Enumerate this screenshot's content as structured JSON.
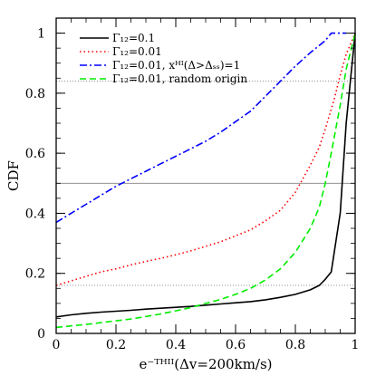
{
  "chart_data": {
    "type": "line",
    "xlabel": "e⁻ᵀᴴᴵᴵ(Δv=200km/s)",
    "ylabel": "CDF",
    "xlim": [
      0,
      1
    ],
    "ylim": [
      0,
      1.05
    ],
    "x_ticks": [
      "0",
      "0.2",
      "0.4",
      "0.6",
      "0.8",
      "1"
    ],
    "y_ticks": [
      "0",
      "0.2",
      "0.4",
      "0.6",
      "0.8",
      "1"
    ],
    "grid": false,
    "legend_position": "top-left",
    "reference_lines": [
      {
        "y": 0.16,
        "style": "dotted",
        "color": "#808080"
      },
      {
        "y": 0.5,
        "style": "solid",
        "color": "#808080"
      },
      {
        "y": 0.84,
        "style": "dotted",
        "color": "#808080"
      }
    ],
    "series": [
      {
        "name": "Γ̅₁₂=0.1",
        "color": "#000000",
        "dash": "solid",
        "x": [
          0,
          0.05,
          0.1,
          0.15,
          0.2,
          0.25,
          0.3,
          0.35,
          0.4,
          0.45,
          0.5,
          0.55,
          0.6,
          0.65,
          0.7,
          0.75,
          0.8,
          0.85,
          0.88,
          0.9,
          0.92,
          0.95,
          0.97,
          1.0
        ],
        "y": [
          0.055,
          0.062,
          0.067,
          0.071,
          0.074,
          0.077,
          0.081,
          0.084,
          0.087,
          0.09,
          0.094,
          0.098,
          0.102,
          0.106,
          0.112,
          0.12,
          0.13,
          0.145,
          0.16,
          0.18,
          0.205,
          0.4,
          0.7,
          1.0
        ]
      },
      {
        "name": "Γ̅₁₂=0.01",
        "color": "#ff0000",
        "dash": "dotted",
        "x": [
          0,
          0.05,
          0.1,
          0.15,
          0.2,
          0.25,
          0.3,
          0.35,
          0.4,
          0.45,
          0.5,
          0.55,
          0.6,
          0.65,
          0.7,
          0.75,
          0.8,
          0.85,
          0.88,
          0.9,
          0.93,
          0.95,
          0.97,
          1.0
        ],
        "y": [
          0.16,
          0.175,
          0.19,
          0.205,
          0.215,
          0.228,
          0.24,
          0.25,
          0.262,
          0.275,
          0.29,
          0.305,
          0.325,
          0.345,
          0.375,
          0.41,
          0.47,
          0.56,
          0.62,
          0.68,
          0.78,
          0.86,
          0.93,
          1.0
        ]
      },
      {
        "name": "Γ̅₁₂=0.01, xᴴᴵ(Δ>Δₛₛ)=1",
        "color": "#0000ff",
        "dash": "dash-dot",
        "x": [
          0,
          0.05,
          0.1,
          0.15,
          0.2,
          0.25,
          0.3,
          0.35,
          0.4,
          0.45,
          0.5,
          0.55,
          0.6,
          0.65,
          0.7,
          0.75,
          0.8,
          0.85,
          0.9,
          0.92,
          0.95,
          0.97
        ],
        "y": [
          0.37,
          0.4,
          0.43,
          0.46,
          0.49,
          0.515,
          0.54,
          0.565,
          0.59,
          0.615,
          0.64,
          0.67,
          0.705,
          0.74,
          0.79,
          0.84,
          0.89,
          0.935,
          0.975,
          1.0,
          1.0,
          1.0
        ]
      },
      {
        "name": "Γ̅₁₂=0.01, random origin",
        "color": "#00ee00",
        "dash": "dashed",
        "x": [
          0,
          0.05,
          0.1,
          0.15,
          0.2,
          0.25,
          0.3,
          0.35,
          0.4,
          0.45,
          0.5,
          0.55,
          0.6,
          0.65,
          0.7,
          0.75,
          0.8,
          0.85,
          0.88,
          0.9,
          0.92,
          0.95,
          0.97,
          1.0
        ],
        "y": [
          0.02,
          0.025,
          0.03,
          0.036,
          0.042,
          0.048,
          0.056,
          0.065,
          0.075,
          0.086,
          0.1,
          0.113,
          0.13,
          0.15,
          0.178,
          0.215,
          0.27,
          0.35,
          0.42,
          0.5,
          0.6,
          0.76,
          0.88,
          1.0
        ]
      }
    ]
  }
}
